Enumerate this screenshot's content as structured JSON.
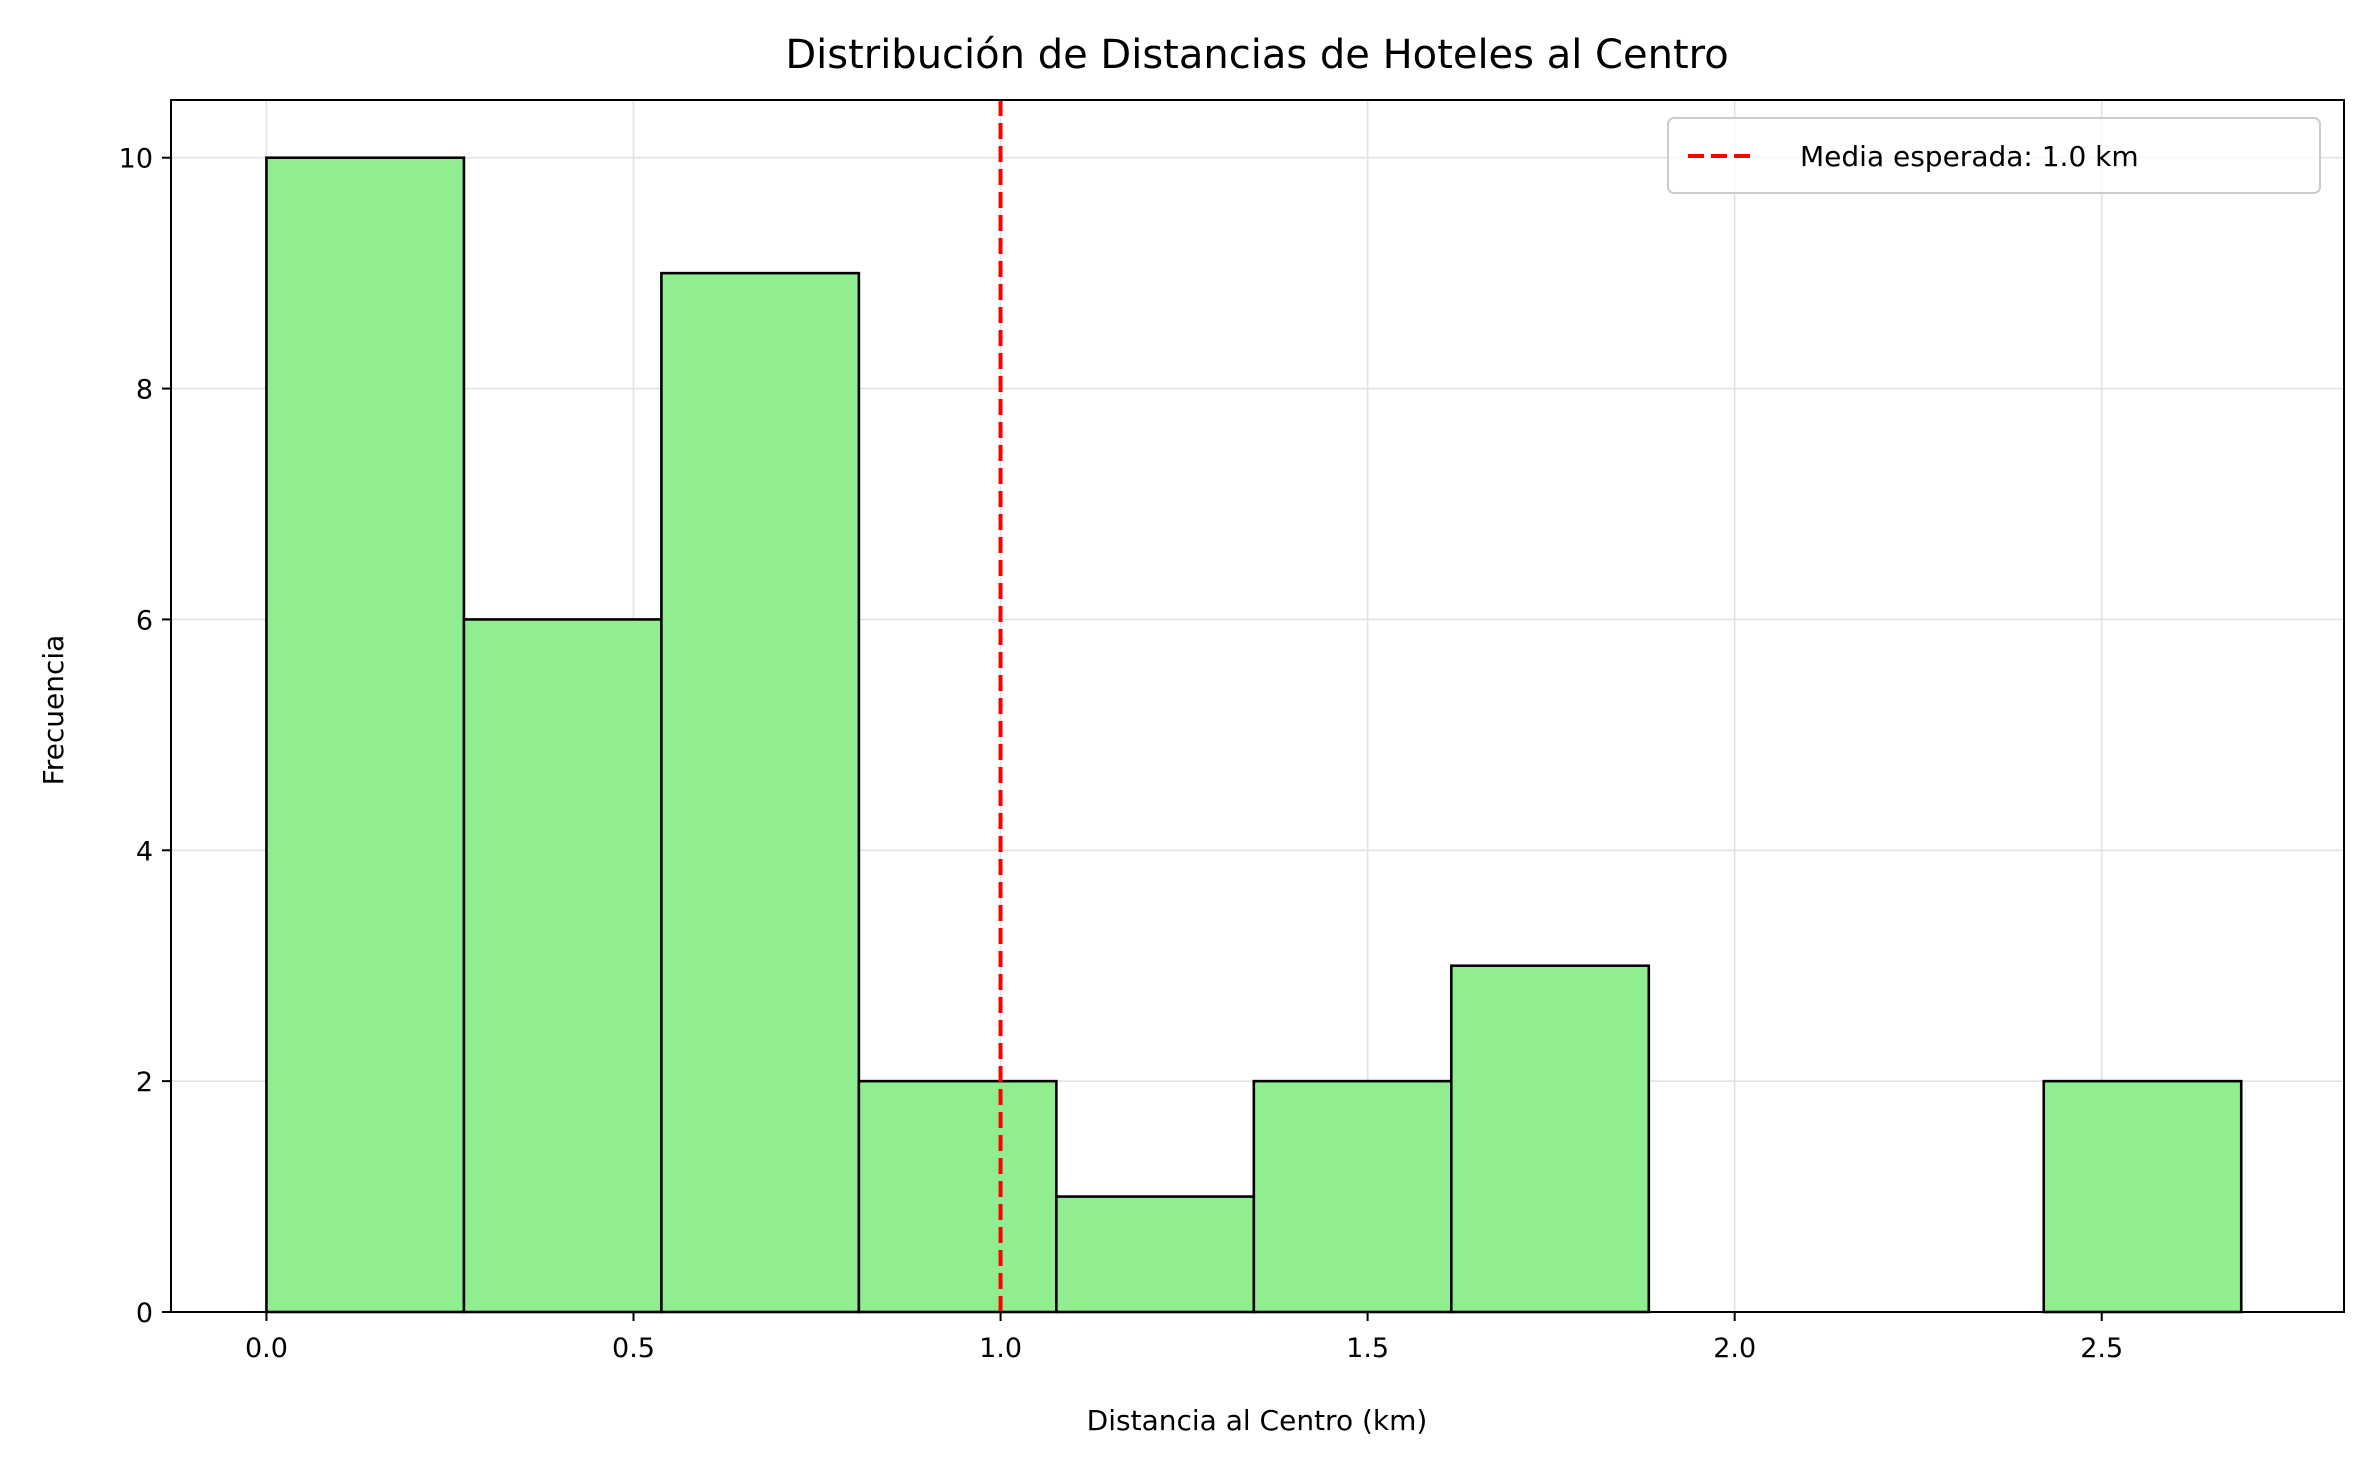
{
  "chart_data": {
    "type": "bar",
    "title": "Distribución de Distancias de Hoteles al Centro",
    "xlabel": "Distancia al Centro (km)",
    "ylabel": "Frecuencia",
    "xlim": [
      -0.13,
      2.83
    ],
    "ylim": [
      0,
      10.5
    ],
    "xticks": [
      "0.0",
      "0.5",
      "1.0",
      "1.5",
      "2.0",
      "2.5"
    ],
    "yticks": [
      "0",
      "2",
      "4",
      "6",
      "8",
      "10"
    ],
    "bin_edges": [
      0.0,
      0.269,
      0.538,
      0.807,
      1.076,
      1.345,
      1.614,
      1.883,
      2.152,
      2.421,
      2.69
    ],
    "values": [
      10,
      6,
      9,
      2,
      1,
      2,
      3,
      0,
      0,
      2
    ],
    "bar_color": "#90ee90",
    "edge_color": "#000000",
    "grid": true,
    "reference_line": {
      "x": 1.0,
      "label": "Media esperada: 1.0 km",
      "color": "#ff0000",
      "style": "dashed"
    },
    "legend_position": "upper right"
  }
}
